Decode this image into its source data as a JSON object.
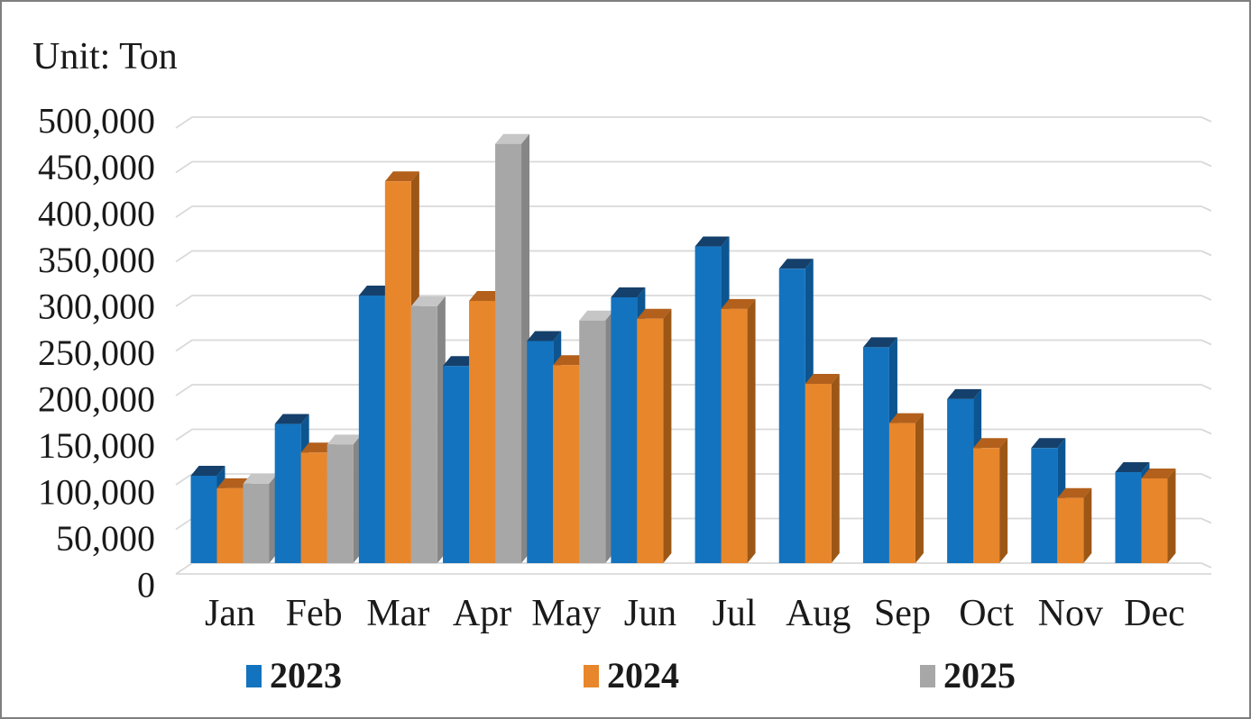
{
  "frame": {
    "background": "#FFFFFF",
    "border_color": "#7F7F7F",
    "text_color": "#1A1A1A"
  },
  "unit_label": "Unit: Ton",
  "chart_data": {
    "type": "bar",
    "subtype": "3d-clustered-column",
    "title": "",
    "unit": "Ton",
    "categories": [
      "Jan",
      "Feb",
      "Mar",
      "Apr",
      "May",
      "Jun",
      "Jul",
      "Aug",
      "Sep",
      "Oct",
      "Nov",
      "Dec"
    ],
    "series": [
      {
        "name": "2023",
        "color": "#1373BE",
        "side_color": "#0C5591",
        "top_color": "#15406B",
        "values": [
          98000,
          156000,
          300000,
          221000,
          249000,
          298000,
          355000,
          330000,
          242000,
          184000,
          129000,
          102000
        ]
      },
      {
        "name": "2024",
        "color": "#E8862C",
        "side_color": "#9C5716",
        "top_color": "#B2601C",
        "values": [
          84000,
          124000,
          428000,
          294000,
          222000,
          274000,
          285000,
          201000,
          157000,
          129000,
          73000,
          95000
        ]
      },
      {
        "name": "2025",
        "color": "#A7A7A7",
        "side_color": "#868686",
        "top_color": "#C6C6C6",
        "values": [
          89000,
          133000,
          288000,
          470000,
          272000,
          null,
          null,
          null,
          null,
          null,
          null,
          null
        ]
      }
    ],
    "ylim": [
      0,
      500000
    ],
    "ytick_step": 50000,
    "yticks": [
      {
        "value": 0,
        "label": "0"
      },
      {
        "value": 50000,
        "label": "50,000"
      },
      {
        "value": 100000,
        "label": "100,000"
      },
      {
        "value": 150000,
        "label": "150,000"
      },
      {
        "value": 200000,
        "label": "200,000"
      },
      {
        "value": 250000,
        "label": "250,000"
      },
      {
        "value": 300000,
        "label": "300,000"
      },
      {
        "value": 350000,
        "label": "350,000"
      },
      {
        "value": 400000,
        "label": "400,000"
      },
      {
        "value": 450000,
        "label": "450,000"
      },
      {
        "value": 500000,
        "label": "500,000"
      }
    ],
    "grid": true,
    "gridline_color": "#D9D9D9",
    "legend_position": "bottom"
  }
}
